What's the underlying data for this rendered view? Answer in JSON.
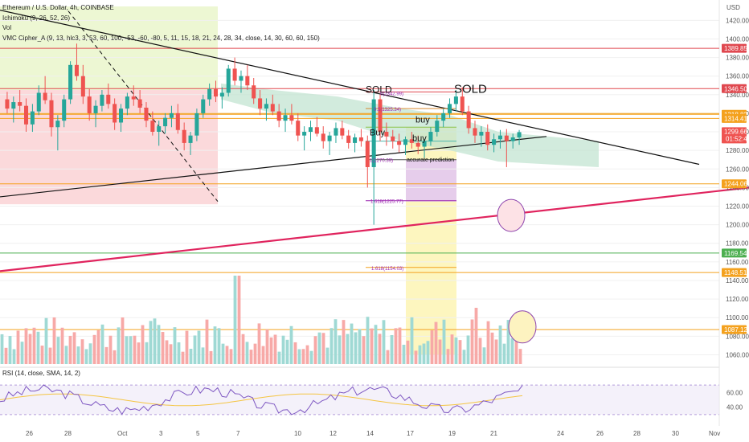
{
  "legend": {
    "title": "Ethereum / U.S. Dollar, 4h, COINBASE",
    "ichimoku": "Ichimoku (9, 26, 52, 26)",
    "vol": "Vol",
    "cipher": "VMC Cipher_A (9, 13, hlc3, 3, 53, 60, 100, -53, -60, -80, 5, 11, 15, 18, 21, 24, 28, 34, close, 14, 30, 60, 60, 150)",
    "rsi": "RSI (14, close, SMA, 14, 2)"
  },
  "colors": {
    "up": "#26a69a",
    "down": "#ef5350",
    "upVol": "#9fd9d4",
    "downVol": "#f7a9a7",
    "resistance": "#e0484f",
    "orange": "#f4a11d",
    "green": "#4caf50",
    "pinkTrend": "#e0245e",
    "fib": "#9c27b0",
    "rsi": "#7e57c2"
  },
  "chart_data": {
    "type": "candlestick",
    "symbol": "Ethereum / U.S. Dollar",
    "timeframe": "4h",
    "exchange": "COINBASE",
    "currency": "USD",
    "ylim": [
      1050,
      1435
    ],
    "yticks": [
      1060,
      1080,
      1100,
      1120,
      1140,
      1160,
      1180,
      1200,
      1220,
      1240,
      1260,
      1280,
      1300,
      1320,
      1340,
      1360,
      1380,
      1400,
      1420
    ],
    "xticks": [
      "26",
      "28",
      "Oct",
      "3",
      "5",
      "7",
      "10",
      "12",
      "14",
      "17",
      "19",
      "21",
      "24",
      "26",
      "28",
      "30",
      "Nov"
    ],
    "current_price": "1299.66",
    "countdown": "01:52:40",
    "price_tags": [
      {
        "value": 1389.85,
        "label": "1389.85",
        "color": "#e0484f"
      },
      {
        "value": 1346.5,
        "label": "1346.50",
        "color": "#e0484f"
      },
      {
        "value": 1318.82,
        "label": "1318.82",
        "color": "#f4a11d"
      },
      {
        "value": 1314.41,
        "label": "1314.41",
        "color": "#f4a11d"
      },
      {
        "value": 1244.06,
        "label": "1244.06",
        "color": "#f4a11d"
      },
      {
        "value": 1169.54,
        "label": "1169.54",
        "color": "#4caf50"
      },
      {
        "value": 1148.51,
        "label": "1148.51",
        "color": "#f4a11d"
      },
      {
        "value": 1087.12,
        "label": "1087.12",
        "color": "#f4a11d"
      }
    ],
    "fib_labels": [
      "0(1342.99)",
      "0.5(1325.34)",
      "1(1270.39)",
      "1.618(1225.77)",
      "1.618(1154.03)"
    ],
    "annotations": [
      "SOLD",
      "SOLD",
      "Buy",
      "buy",
      "buy",
      "accurate prediction"
    ],
    "rsi": {
      "ylim": [
        20,
        80
      ],
      "yticks": [
        "60.00",
        "40.00"
      ]
    },
    "series": [
      {
        "name": "ETH/USD",
        "ohlc": [
          [
            1335,
            1343,
            1320,
            1325
          ],
          [
            1325,
            1338,
            1310,
            1332
          ],
          [
            1332,
            1345,
            1322,
            1328
          ],
          [
            1328,
            1336,
            1300,
            1308
          ],
          [
            1308,
            1330,
            1300,
            1322
          ],
          [
            1322,
            1350,
            1318,
            1342
          ],
          [
            1342,
            1360,
            1330,
            1334
          ],
          [
            1334,
            1342,
            1295,
            1305
          ],
          [
            1305,
            1318,
            1280,
            1312
          ],
          [
            1312,
            1340,
            1305,
            1335
          ],
          [
            1335,
            1376,
            1330,
            1372
          ],
          [
            1372,
            1395,
            1355,
            1360
          ],
          [
            1360,
            1372,
            1330,
            1338
          ],
          [
            1338,
            1346,
            1312,
            1320
          ],
          [
            1320,
            1334,
            1305,
            1328
          ],
          [
            1328,
            1345,
            1322,
            1340
          ],
          [
            1340,
            1352,
            1325,
            1330
          ],
          [
            1330,
            1336,
            1302,
            1310
          ],
          [
            1310,
            1330,
            1300,
            1325
          ],
          [
            1325,
            1342,
            1318,
            1338
          ],
          [
            1338,
            1350,
            1328,
            1335
          ],
          [
            1335,
            1345,
            1320,
            1326
          ],
          [
            1326,
            1332,
            1305,
            1312
          ],
          [
            1312,
            1322,
            1296,
            1300
          ],
          [
            1300,
            1312,
            1285,
            1306
          ],
          [
            1306,
            1320,
            1298,
            1315
          ],
          [
            1315,
            1328,
            1305,
            1320
          ],
          [
            1320,
            1330,
            1298,
            1302
          ],
          [
            1302,
            1310,
            1280,
            1288
          ],
          [
            1288,
            1300,
            1275,
            1296
          ],
          [
            1296,
            1325,
            1290,
            1320
          ],
          [
            1320,
            1340,
            1315,
            1335
          ],
          [
            1335,
            1352,
            1328,
            1346
          ],
          [
            1346,
            1355,
            1332,
            1338
          ],
          [
            1338,
            1348,
            1325,
            1342
          ],
          [
            1342,
            1372,
            1338,
            1368
          ],
          [
            1368,
            1380,
            1350,
            1355
          ],
          [
            1355,
            1366,
            1342,
            1360
          ],
          [
            1360,
            1372,
            1345,
            1350
          ],
          [
            1350,
            1358,
            1330,
            1336
          ],
          [
            1336,
            1345,
            1318,
            1325
          ],
          [
            1325,
            1336,
            1312,
            1330
          ],
          [
            1330,
            1340,
            1318,
            1322
          ],
          [
            1322,
            1330,
            1305,
            1312
          ],
          [
            1312,
            1325,
            1300,
            1318
          ],
          [
            1318,
            1330,
            1308,
            1312
          ],
          [
            1312,
            1320,
            1290,
            1296
          ],
          [
            1296,
            1306,
            1280,
            1300
          ],
          [
            1300,
            1312,
            1290,
            1305
          ],
          [
            1305,
            1316,
            1295,
            1298
          ],
          [
            1298,
            1306,
            1282,
            1290
          ],
          [
            1290,
            1300,
            1275,
            1296
          ],
          [
            1296,
            1310,
            1288,
            1304
          ],
          [
            1304,
            1312,
            1292,
            1296
          ],
          [
            1296,
            1302,
            1282,
            1288
          ],
          [
            1288,
            1298,
            1278,
            1294
          ],
          [
            1294,
            1303,
            1284,
            1290
          ],
          [
            1290,
            1296,
            1240,
            1262
          ],
          [
            1262,
            1345,
            1200,
            1335
          ],
          [
            1335,
            1340,
            1290,
            1300
          ],
          [
            1300,
            1310,
            1285,
            1295
          ],
          [
            1295,
            1302,
            1282,
            1290
          ],
          [
            1290,
            1298,
            1278,
            1286
          ],
          [
            1286,
            1295,
            1275,
            1292
          ],
          [
            1292,
            1300,
            1282,
            1288
          ],
          [
            1288,
            1296,
            1276,
            1284
          ],
          [
            1284,
            1292,
            1272,
            1290
          ],
          [
            1290,
            1305,
            1285,
            1300
          ],
          [
            1300,
            1318,
            1295,
            1312
          ],
          [
            1312,
            1325,
            1305,
            1320
          ],
          [
            1320,
            1336,
            1315,
            1330
          ],
          [
            1330,
            1345,
            1322,
            1338
          ],
          [
            1338,
            1348,
            1318,
            1322
          ],
          [
            1322,
            1328,
            1298,
            1304
          ],
          [
            1304,
            1312,
            1288,
            1296
          ],
          [
            1296,
            1306,
            1284,
            1300
          ],
          [
            1300,
            1308,
            1280,
            1286
          ],
          [
            1286,
            1298,
            1278,
            1292
          ],
          [
            1292,
            1302,
            1282,
            1296
          ],
          [
            1296,
            1303,
            1262,
            1290
          ],
          [
            1290,
            1298,
            1282,
            1294
          ],
          [
            1294,
            1302,
            1286,
            1299.66
          ]
        ]
      }
    ]
  }
}
